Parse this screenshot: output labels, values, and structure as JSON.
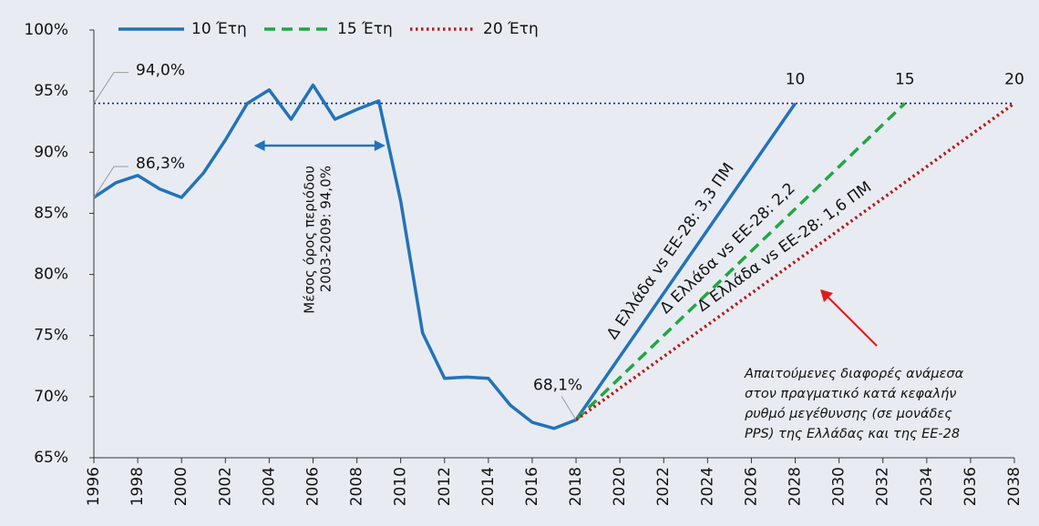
{
  "chart_data": {
    "type": "line",
    "legend": "top-left",
    "ylim": [
      65,
      100
    ],
    "yticks": [
      {
        "value": 65,
        "label": "65%"
      },
      {
        "value": 70,
        "label": "70%"
      },
      {
        "value": 75,
        "label": "75%"
      },
      {
        "value": 80,
        "label": "80%"
      },
      {
        "value": 85,
        "label": "85%"
      },
      {
        "value": 90,
        "label": "90%"
      },
      {
        "value": 95,
        "label": "95%"
      },
      {
        "value": 100,
        "label": "100%"
      }
    ],
    "xlim": [
      1996,
      2038
    ],
    "xticks": [
      1996,
      1998,
      2000,
      2002,
      2004,
      2006,
      2008,
      2010,
      2012,
      2014,
      2016,
      2018,
      2020,
      2022,
      2024,
      2026,
      2028,
      2030,
      2032,
      2034,
      2036,
      2038
    ],
    "reference_line": {
      "value": 94,
      "label": "94,0%",
      "color": "#1a2a6c"
    },
    "series": [
      {
        "name": "10 Έτη",
        "color": "#2472b9",
        "style": "solid",
        "x": [
          1996,
          1997,
          1998,
          1999,
          2000,
          2001,
          2002,
          2003,
          2004,
          2005,
          2006,
          2007,
          2008,
          2009,
          2010,
          2011,
          2012,
          2013,
          2014,
          2015,
          2016,
          2017,
          2018,
          2028
        ],
        "values": [
          86.3,
          87.5,
          88.1,
          87.0,
          86.3,
          88.3,
          91.0,
          94.0,
          95.1,
          92.7,
          95.5,
          92.7,
          93.5,
          94.2,
          86.0,
          75.2,
          71.5,
          71.6,
          71.5,
          69.3,
          67.9,
          67.4,
          68.1,
          94.0
        ],
        "end_label": "10",
        "slope_label": "Δ Ελλάδα vs ΕΕ-28: 3,3 ΠΜ"
      },
      {
        "name": "15 Έτη",
        "color": "#22a644",
        "style": "dashed",
        "x": [
          2018,
          2033
        ],
        "values": [
          68.1,
          94.0
        ],
        "end_label": "15",
        "slope_label": "Δ Ελλάδα vs ΕΕ-28: 2,2"
      },
      {
        "name": "20 Έτη",
        "color": "#b51c1c",
        "style": "dotted",
        "x": [
          2018,
          2038
        ],
        "values": [
          68.1,
          94.0
        ],
        "end_label": "20",
        "slope_label": "Δ Ελλάδα vs ΕΕ-28: 1,6 ΠΜ"
      }
    ],
    "point_labels": [
      {
        "text": "86,3%",
        "value": 86.3
      },
      {
        "text": "68,1%",
        "value": 68.1
      }
    ],
    "period_note": [
      "Μέσος όρος περιόδου",
      "2003-2009: 94,0%"
    ],
    "note": [
      "Απαιτούμενες διαφορές ανάμεσα",
      "στον πραγματικό κατά κεφαλήν",
      "ρυθμό μεγέθυνσης (σε μονάδες",
      "PPS) της Ελλάδας και της ΕΕ-28"
    ]
  }
}
